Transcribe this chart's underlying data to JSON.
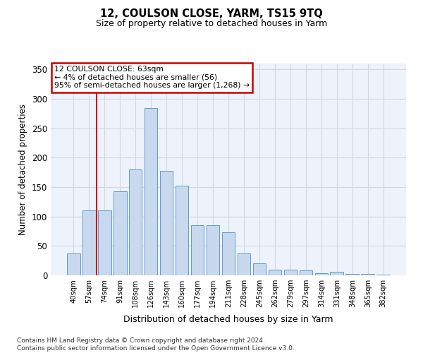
{
  "title": "12, COULSON CLOSE, YARM, TS15 9TQ",
  "subtitle": "Size of property relative to detached houses in Yarm",
  "xlabel": "Distribution of detached houses by size in Yarm",
  "ylabel": "Number of detached properties",
  "categories": [
    "40sqm",
    "57sqm",
    "74sqm",
    "91sqm",
    "108sqm",
    "126sqm",
    "143sqm",
    "160sqm",
    "177sqm",
    "194sqm",
    "211sqm",
    "228sqm",
    "245sqm",
    "262sqm",
    "279sqm",
    "297sqm",
    "314sqm",
    "331sqm",
    "348sqm",
    "365sqm",
    "382sqm"
  ],
  "values": [
    37,
    110,
    110,
    143,
    180,
    285,
    178,
    152,
    85,
    85,
    73,
    37,
    20,
    10,
    10,
    9,
    4,
    6,
    2,
    2,
    1
  ],
  "bar_color": "#c8d9ed",
  "bar_edge_color": "#5b9bd5",
  "bar_width": 0.85,
  "vline_x": 1.5,
  "vline_color": "#cc0000",
  "ylim": [
    0,
    360
  ],
  "yticks": [
    0,
    50,
    100,
    150,
    200,
    250,
    300,
    350
  ],
  "annotation_text": "12 COULSON CLOSE: 63sqm\n← 4% of detached houses are smaller (56)\n95% of semi-detached houses are larger (1,268) →",
  "annotation_box_color": "#ffffff",
  "annotation_box_edge": "#cc0000",
  "footer_text": "Contains HM Land Registry data © Crown copyright and database right 2024.\nContains public sector information licensed under the Open Government Licence v3.0.",
  "grid_color": "#d0d8e4",
  "background_color": "#eef2fa",
  "title_fontsize": 10.5,
  "subtitle_fontsize": 9
}
